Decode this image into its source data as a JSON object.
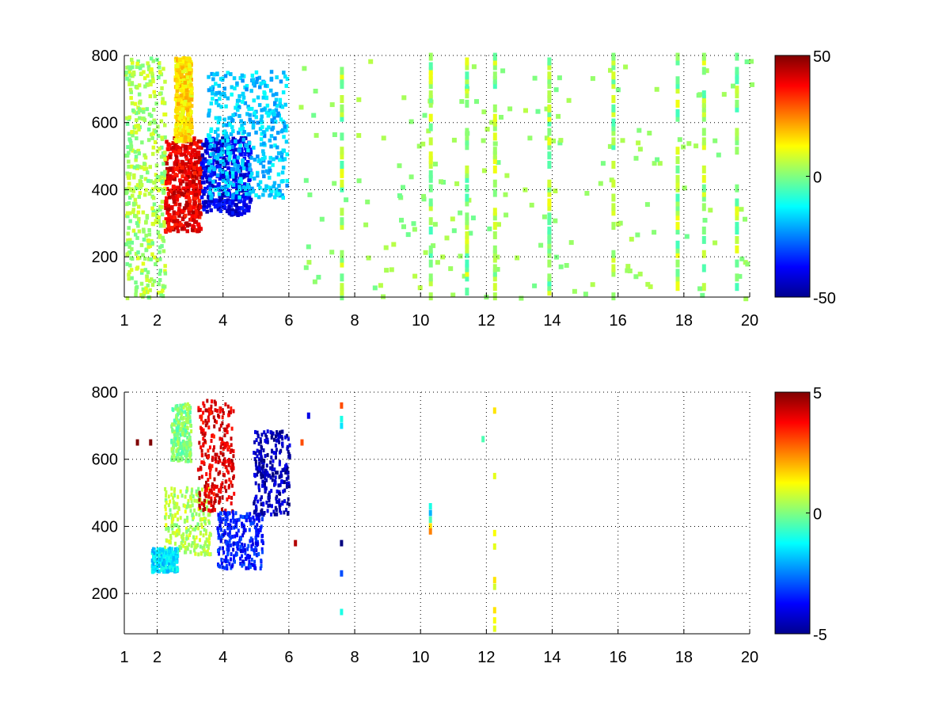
{
  "chart_data": [
    {
      "type": "heatmap",
      "title": "",
      "xlabel": "",
      "ylabel": "",
      "xlim": [
        1,
        20
      ],
      "ylim": [
        80,
        800
      ],
      "x_ticks": [
        "1",
        "2",
        "4",
        "6",
        "8",
        "10",
        "12",
        "14",
        "16",
        "18",
        "20"
      ],
      "y_ticks": [
        "200",
        "400",
        "600",
        "800"
      ],
      "grid": true,
      "colormap": "jet",
      "colorbar": {
        "range": [
          -50,
          50
        ],
        "ticks": [
          "50",
          "0",
          "-50"
        ]
      },
      "features": [
        {
          "x_range": [
            2.2,
            3.3
          ],
          "y_range": [
            280,
            560
          ],
          "value": 40
        },
        {
          "x_range": [
            2.5,
            3.0
          ],
          "y_range": [
            550,
            800
          ],
          "value": 15
        },
        {
          "x_range": [
            3.3,
            4.8
          ],
          "y_range": [
            330,
            560
          ],
          "value": -40
        },
        {
          "x_range": [
            3.5,
            5.9
          ],
          "y_range": [
            380,
            760
          ],
          "value": -18
        },
        {
          "x_range": [
            1.0,
            2.2
          ],
          "y_range": [
            80,
            800
          ],
          "value": 4
        },
        {
          "x_range": [
            6.0,
            20.0
          ],
          "y_range": [
            80,
            800
          ],
          "value": 2
        }
      ],
      "stripes_x": [
        7.6,
        10.3,
        11.4,
        12.25,
        13.9,
        15.85,
        17.8,
        18.6,
        19.6
      ]
    },
    {
      "type": "heatmap",
      "title": "",
      "xlabel": "",
      "ylabel": "",
      "xlim": [
        1,
        20
      ],
      "ylim": [
        80,
        800
      ],
      "x_ticks": [
        "1",
        "2",
        "4",
        "6",
        "8",
        "10",
        "12",
        "14",
        "16",
        "18",
        "20"
      ],
      "y_ticks": [
        "200",
        "400",
        "600",
        "800"
      ],
      "grid": true,
      "colormap": "jet",
      "colorbar": {
        "range": [
          -5,
          5
        ],
        "ticks": [
          "5",
          "0",
          "-5"
        ]
      },
      "features": [
        {
          "x_range": [
            2.2,
            3.6
          ],
          "y_range": [
            320,
            520
          ],
          "value": 0.5
        },
        {
          "x_range": [
            3.2,
            4.3
          ],
          "y_range": [
            450,
            780
          ],
          "value": 4
        },
        {
          "x_range": [
            2.4,
            3.0
          ],
          "y_range": [
            600,
            770
          ],
          "value": 0
        },
        {
          "x_range": [
            3.8,
            5.2
          ],
          "y_range": [
            280,
            450
          ],
          "value": -3.5
        },
        {
          "x_range": [
            4.9,
            6.0
          ],
          "y_range": [
            440,
            690
          ],
          "value": -4.5
        },
        {
          "x_range": [
            1.8,
            2.6
          ],
          "y_range": [
            270,
            340
          ],
          "value": -1.5
        }
      ],
      "points": [
        {
          "x": 10.3,
          "y": 460,
          "value": -1
        },
        {
          "x": 10.3,
          "y": 440,
          "value": -2
        },
        {
          "x": 10.3,
          "y": 420,
          "value": -0.5
        },
        {
          "x": 10.3,
          "y": 400,
          "value": 1.5
        },
        {
          "x": 10.3,
          "y": 385,
          "value": 2.5
        },
        {
          "x": 12.25,
          "y": 745,
          "value": 1.5
        },
        {
          "x": 12.25,
          "y": 550,
          "value": 1
        },
        {
          "x": 12.25,
          "y": 380,
          "value": 1.2
        },
        {
          "x": 12.25,
          "y": 340,
          "value": 1
        },
        {
          "x": 12.25,
          "y": 240,
          "value": 1.5
        },
        {
          "x": 12.25,
          "y": 220,
          "value": 0.8
        },
        {
          "x": 12.25,
          "y": 150,
          "value": 1.5
        },
        {
          "x": 12.25,
          "y": 120,
          "value": 1.2
        },
        {
          "x": 12.25,
          "y": 95,
          "value": 1
        },
        {
          "x": 7.6,
          "y": 760,
          "value": 3
        },
        {
          "x": 7.6,
          "y": 720,
          "value": -1
        },
        {
          "x": 7.6,
          "y": 700,
          "value": -1.5
        },
        {
          "x": 7.6,
          "y": 350,
          "value": -5
        },
        {
          "x": 7.6,
          "y": 260,
          "value": -3
        },
        {
          "x": 7.6,
          "y": 145,
          "value": -1
        },
        {
          "x": 6.6,
          "y": 730,
          "value": -4
        },
        {
          "x": 6.4,
          "y": 650,
          "value": 3
        },
        {
          "x": 6.2,
          "y": 350,
          "value": 4.5
        },
        {
          "x": 1.4,
          "y": 650,
          "value": 5
        },
        {
          "x": 1.8,
          "y": 650,
          "value": 5
        },
        {
          "x": 11.9,
          "y": 660,
          "value": -0.5
        }
      ]
    }
  ]
}
